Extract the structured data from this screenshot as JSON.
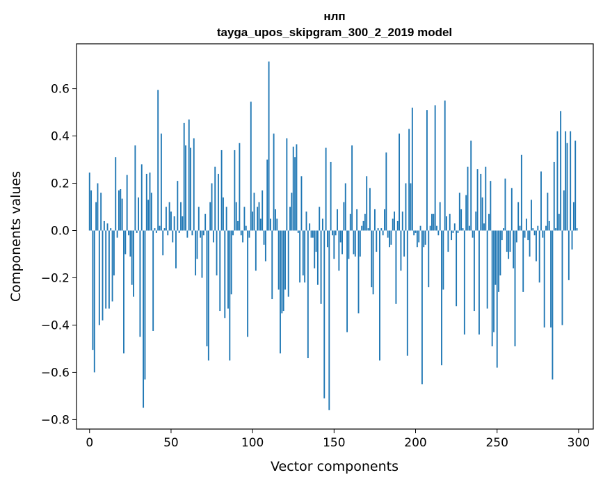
{
  "chart_data": {
    "type": "bar",
    "title": "нлп",
    "subtitle": "tayga_upos_skipgram_300_2_2019 model",
    "xlabel": "Vector components",
    "ylabel": "Components values",
    "xlim": [
      -8,
      309
    ],
    "ylim": [
      -0.84,
      0.79
    ],
    "x_ticks": [
      0,
      50,
      100,
      150,
      200,
      250,
      300
    ],
    "y_ticks": [
      -0.8,
      -0.6,
      -0.4,
      -0.2,
      0.0,
      0.2,
      0.4,
      0.6
    ],
    "y_tick_labels": [
      "−0.8",
      "−0.6",
      "−0.4",
      "−0.2",
      "0.0",
      "0.2",
      "0.4",
      "0.6"
    ],
    "x_tick_labels": [
      "0",
      "50",
      "100",
      "150",
      "200",
      "250",
      "300"
    ],
    "bar_color": "#1f77b4",
    "values": [
      0.245,
      0.17,
      -0.505,
      -0.6,
      0.12,
      0.2,
      -0.4,
      0.16,
      -0.38,
      0.04,
      -0.33,
      0.03,
      -0.33,
      0.01,
      -0.3,
      -0.19,
      0.31,
      -0.03,
      0.17,
      0.175,
      0.135,
      -0.52,
      -0.1,
      0.235,
      -0.02,
      -0.11,
      -0.23,
      -0.28,
      0.36,
      -0.01,
      0.14,
      -0.45,
      0.28,
      -0.75,
      -0.63,
      0.24,
      0.13,
      0.245,
      0.16,
      -0.425,
      0.01,
      -0.01,
      0.595,
      0.02,
      0.41,
      -0.105,
      0.01,
      0.1,
      -0.02,
      0.12,
      0.08,
      -0.05,
      0.06,
      -0.16,
      0.21,
      -0.01,
      0.12,
      0.06,
      0.455,
      0.36,
      -0.03,
      0.47,
      0.35,
      -0.02,
      0.39,
      -0.19,
      -0.12,
      0.1,
      -0.03,
      -0.2,
      -0.02,
      0.07,
      -0.49,
      -0.55,
      0.12,
      0.2,
      -0.05,
      0.27,
      -0.19,
      0.24,
      -0.34,
      0.34,
      0.14,
      -0.37,
      0.1,
      -0.33,
      -0.55,
      -0.27,
      -0.02,
      0.34,
      0.12,
      0.04,
      0.37,
      -0.02,
      -0.05,
      0.1,
      0.02,
      -0.45,
      -0.03,
      0.545,
      0.08,
      0.16,
      -0.17,
      0.1,
      0.12,
      0.05,
      0.17,
      -0.06,
      -0.13,
      0.3,
      0.715,
      0.05,
      -0.29,
      0.41,
      0.09,
      0.05,
      -0.25,
      -0.52,
      -0.35,
      -0.34,
      -0.25,
      0.39,
      -0.28,
      0.1,
      0.16,
      0.355,
      0.31,
      0.365,
      -0.01,
      -0.22,
      0.23,
      -0.19,
      -0.22,
      0.08,
      -0.54,
      0.03,
      -0.03,
      -0.03,
      -0.16,
      -0.09,
      -0.23,
      0.1,
      -0.31,
      0.05,
      -0.71,
      0.35,
      -0.07,
      -0.76,
      0.29,
      -0.02,
      -0.12,
      -0.02,
      0.09,
      -0.17,
      -0.05,
      -0.1,
      0.12,
      0.2,
      -0.43,
      -0.12,
      0.07,
      0.36,
      -0.1,
      -0.11,
      0.09,
      -0.35,
      -0.11,
      0.02,
      0.04,
      0.07,
      0.23,
      0.01,
      0.18,
      -0.24,
      -0.27,
      0.09,
      -0.09,
      0.01,
      -0.55,
      0.01,
      -0.02,
      0.09,
      0.33,
      -0.03,
      -0.07,
      -0.06,
      0.05,
      0.08,
      -0.31,
      0.04,
      0.41,
      -0.17,
      0.08,
      -0.11,
      0.2,
      -0.53,
      0.43,
      0.2,
      0.52,
      -0.02,
      -0.01,
      -0.07,
      -0.05,
      0.02,
      -0.65,
      -0.07,
      -0.06,
      0.51,
      -0.24,
      0.02,
      0.07,
      0.07,
      0.53,
      0.02,
      -0.02,
      0.12,
      -0.57,
      -0.25,
      0.55,
      0.06,
      -0.09,
      0.07,
      -0.04,
      -0.01,
      0.03,
      -0.32,
      -0.01,
      0.16,
      0.09,
      0.01,
      -0.44,
      0.15,
      0.27,
      0.02,
      0.38,
      -0.03,
      -0.34,
      0.08,
      0.26,
      -0.44,
      0.24,
      0.14,
      0.03,
      0.27,
      -0.33,
      0.07,
      0.21,
      -0.49,
      -0.43,
      -0.23,
      -0.58,
      -0.26,
      -0.19,
      -0.04,
      0.01,
      0.22,
      -0.09,
      -0.12,
      -0.09,
      0.18,
      -0.16,
      -0.49,
      -0.05,
      0.12,
      0.02,
      0.32,
      -0.26,
      -0.03,
      0.05,
      -0.04,
      -0.11,
      0.13,
      0.01,
      -0.02,
      -0.13,
      0.02,
      -0.22,
      0.25,
      -0.03,
      -0.41,
      0.02,
      0.16,
      0.04,
      -0.41,
      -0.63,
      0.29,
      0.01,
      0.42,
      0.07,
      0.505,
      -0.4,
      0.17,
      0.42,
      0.37,
      -0.21,
      0.42,
      -0.08,
      0.12,
      0.38,
      0.01
    ]
  }
}
